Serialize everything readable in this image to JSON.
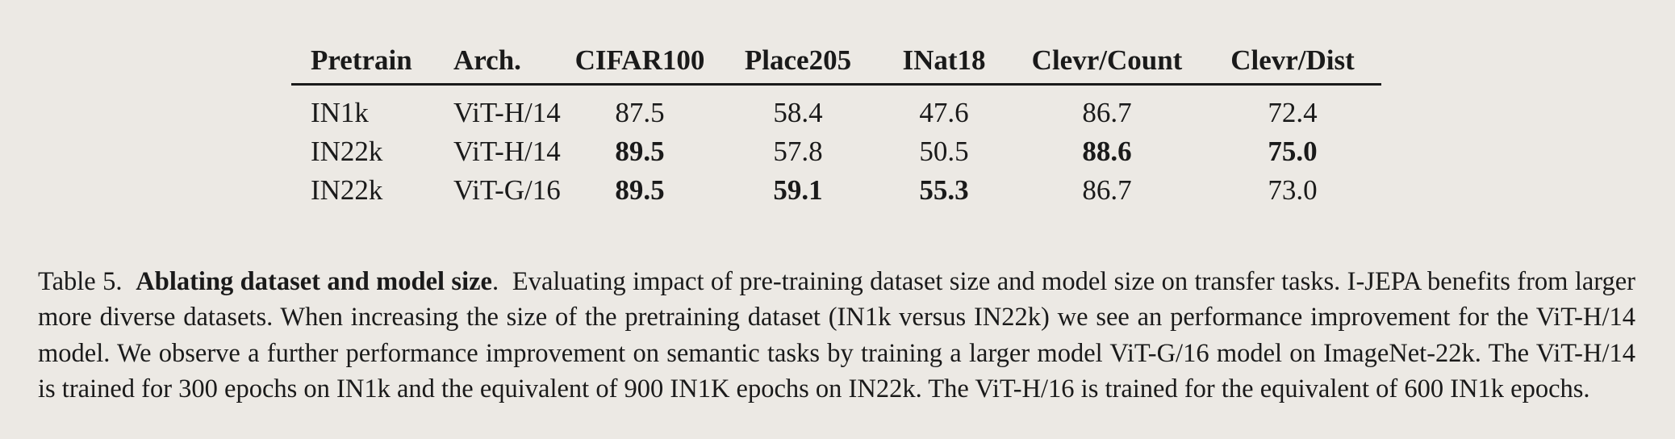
{
  "table": {
    "columns": [
      "Pretrain",
      "Arch.",
      "CIFAR100",
      "Place205",
      "INat18",
      "Clevr/Count",
      "Clevr/Dist"
    ],
    "rows": [
      {
        "pretrain": "IN1k",
        "arch": "ViT-H/14",
        "cifar100": "87.5",
        "place205": "58.4",
        "inat18": "47.6",
        "clevr_count": "86.7",
        "clevr_dist": "72.4"
      },
      {
        "pretrain": "IN22k",
        "arch": "ViT-H/14",
        "cifar100": "89.5",
        "place205": "57.8",
        "inat18": "50.5",
        "clevr_count": "88.6",
        "clevr_dist": "75.0"
      },
      {
        "pretrain": "IN22k",
        "arch": "ViT-G/16",
        "cifar100": "89.5",
        "place205": "59.1",
        "inat18": "55.3",
        "clevr_count": "86.7",
        "clevr_dist": "73.0"
      }
    ]
  },
  "caption": {
    "label": "Table 5.",
    "title": "Ablating dataset and model size",
    "body": "Evaluating impact of pre-training dataset size and model size on transfer tasks.  I-JEPA benefits from larger more diverse datasets. When increasing the size of the pretraining dataset (IN1k versus IN22k) we see an performance improvement for the ViT-H/14 model. We observe a further performance improvement on semantic tasks by training a larger model ViT-G/16 model on ImageNet-22k.  The ViT-H/14 is trained for 300 epochs on IN1k and the equivalent of 900 IN1K epochs on IN22k.  The ViT-H/16 is trained for the equivalent of 600 IN1k epochs."
  }
}
